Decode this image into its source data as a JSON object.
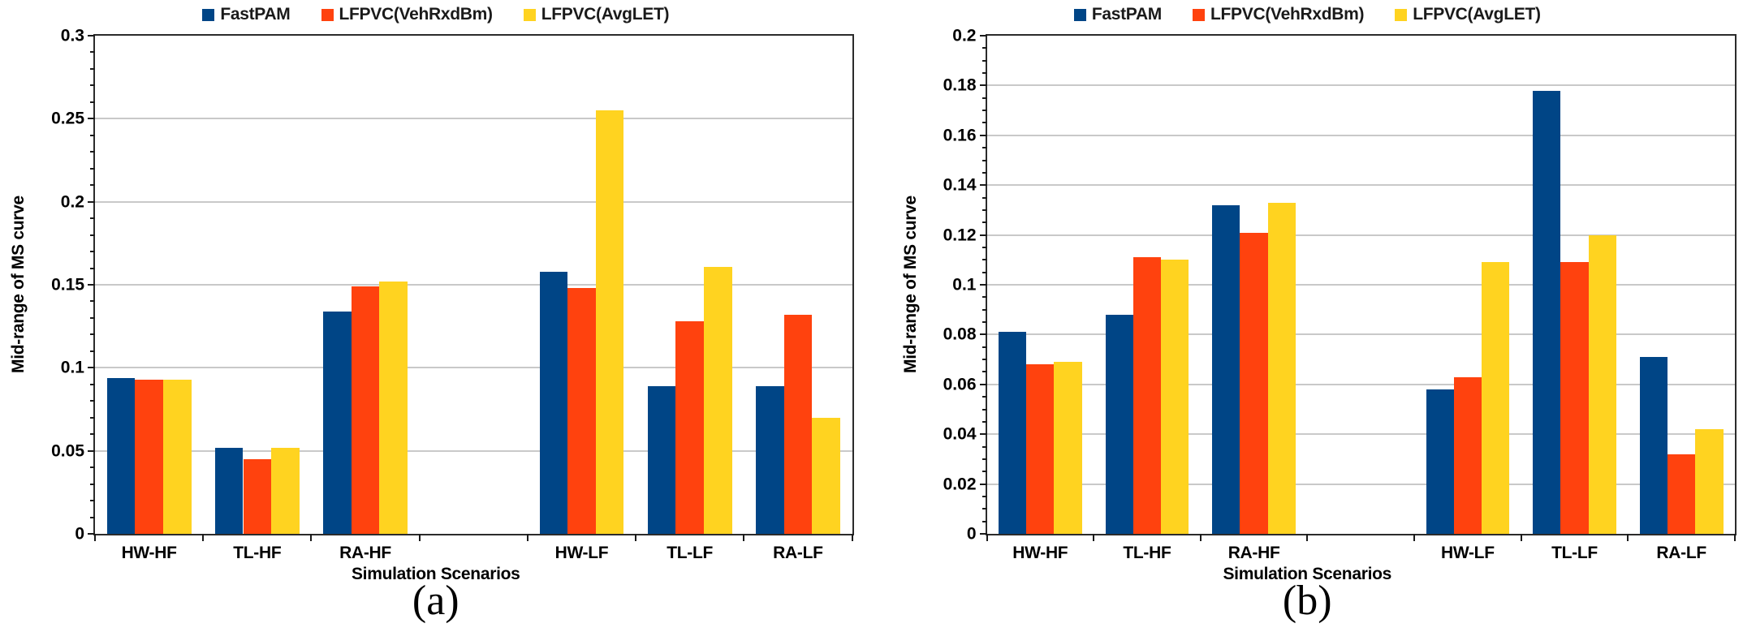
{
  "figure": {
    "background": "#ffffff",
    "axis_color": "#2b2b2b",
    "gridline_color": "#c9c9c9"
  },
  "chart_data": [
    {
      "id": "a",
      "type": "bar",
      "caption": "(a)",
      "xlabel": "Simulation Scenarios",
      "ylabel": "Mid-range of MS curve",
      "ylim": [
        0,
        0.3
      ],
      "ytick_step": 0.05,
      "yminor_per_major": 5,
      "ytick_labels": [
        "0",
        "0.05",
        "0.1",
        "0.15",
        "0.2",
        "0.25",
        "0.3"
      ],
      "grid": "horizontal-major",
      "legend_position": "top-center",
      "categories": [
        "HW-HF",
        "TL-HF",
        "RA-HF",
        "",
        "HW-LF",
        "TL-LF",
        "RA-LF"
      ],
      "series": [
        {
          "name": "FastPAM",
          "color": "#004586",
          "values": [
            0.094,
            0.052,
            0.134,
            null,
            0.158,
            0.089,
            0.089
          ]
        },
        {
          "name": "LFPVC(VehRxdBm)",
          "color": "#ff420e",
          "values": [
            0.093,
            0.045,
            0.149,
            null,
            0.148,
            0.128,
            0.132
          ]
        },
        {
          "name": "LFPVC(AvgLET)",
          "color": "#ffd320",
          "values": [
            0.093,
            0.052,
            0.152,
            null,
            0.255,
            0.161,
            0.07
          ]
        }
      ]
    },
    {
      "id": "b",
      "type": "bar",
      "caption": "(b)",
      "xlabel": "Simulation Scenarios",
      "ylabel": "Mid-range of MS curve",
      "ylim": [
        0,
        0.2
      ],
      "ytick_step": 0.02,
      "yminor_per_major": 4,
      "ytick_labels": [
        "0",
        "0.02",
        "0.04",
        "0.06",
        "0.08",
        "0.1",
        "0.12",
        "0.14",
        "0.16",
        "0.18",
        "0.2"
      ],
      "grid": "horizontal-major",
      "legend_position": "top-center",
      "categories": [
        "HW-HF",
        "TL-HF",
        "RA-HF",
        "",
        "HW-LF",
        "TL-LF",
        "RA-LF"
      ],
      "series": [
        {
          "name": "FastPAM",
          "color": "#004586",
          "values": [
            0.081,
            0.088,
            0.132,
            null,
            0.058,
            0.178,
            0.071
          ]
        },
        {
          "name": "LFPVC(VehRxdBm)",
          "color": "#ff420e",
          "values": [
            0.068,
            0.111,
            0.121,
            null,
            0.063,
            0.109,
            0.032
          ]
        },
        {
          "name": "LFPVC(AvgLET)",
          "color": "#ffd320",
          "values": [
            0.069,
            0.11,
            0.133,
            null,
            0.109,
            0.12,
            0.042
          ]
        }
      ]
    }
  ]
}
